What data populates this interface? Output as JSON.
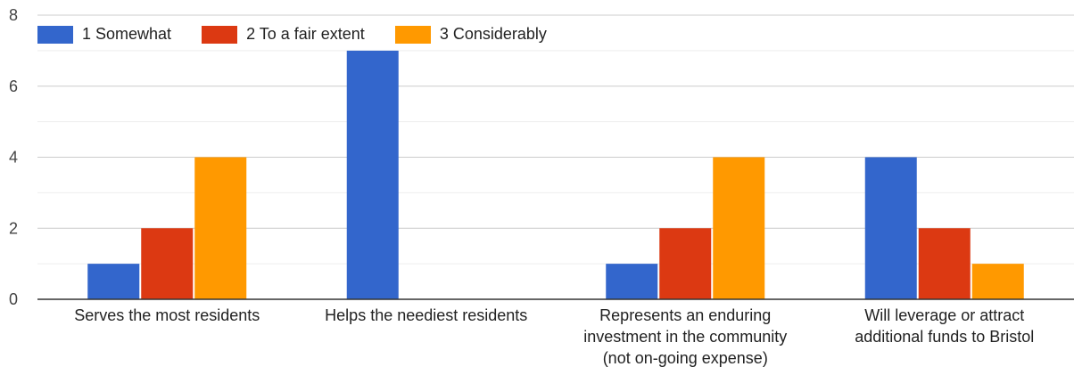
{
  "chart_data": {
    "type": "bar",
    "categories": [
      [
        "Serves the most residents"
      ],
      [
        "Helps the neediest residents"
      ],
      [
        "Represents an enduring",
        "investment in the community",
        "(not on-going expense)"
      ],
      [
        "Will leverage or attract",
        "additional funds to Bristol"
      ]
    ],
    "series": [
      {
        "name": "1 Somewhat",
        "color": "#3366cc",
        "values": [
          1,
          7,
          1,
          4
        ]
      },
      {
        "name": "2 To a fair extent",
        "color": "#dc3912",
        "values": [
          2,
          0,
          2,
          2
        ]
      },
      {
        "name": "3 Considerably",
        "color": "#ff9900",
        "values": [
          4,
          0,
          4,
          1
        ]
      }
    ],
    "ylim": [
      0,
      8
    ],
    "yticks": [
      "0",
      "2",
      "4",
      "6",
      "8"
    ],
    "grid": true,
    "legend_position": "top-left"
  }
}
